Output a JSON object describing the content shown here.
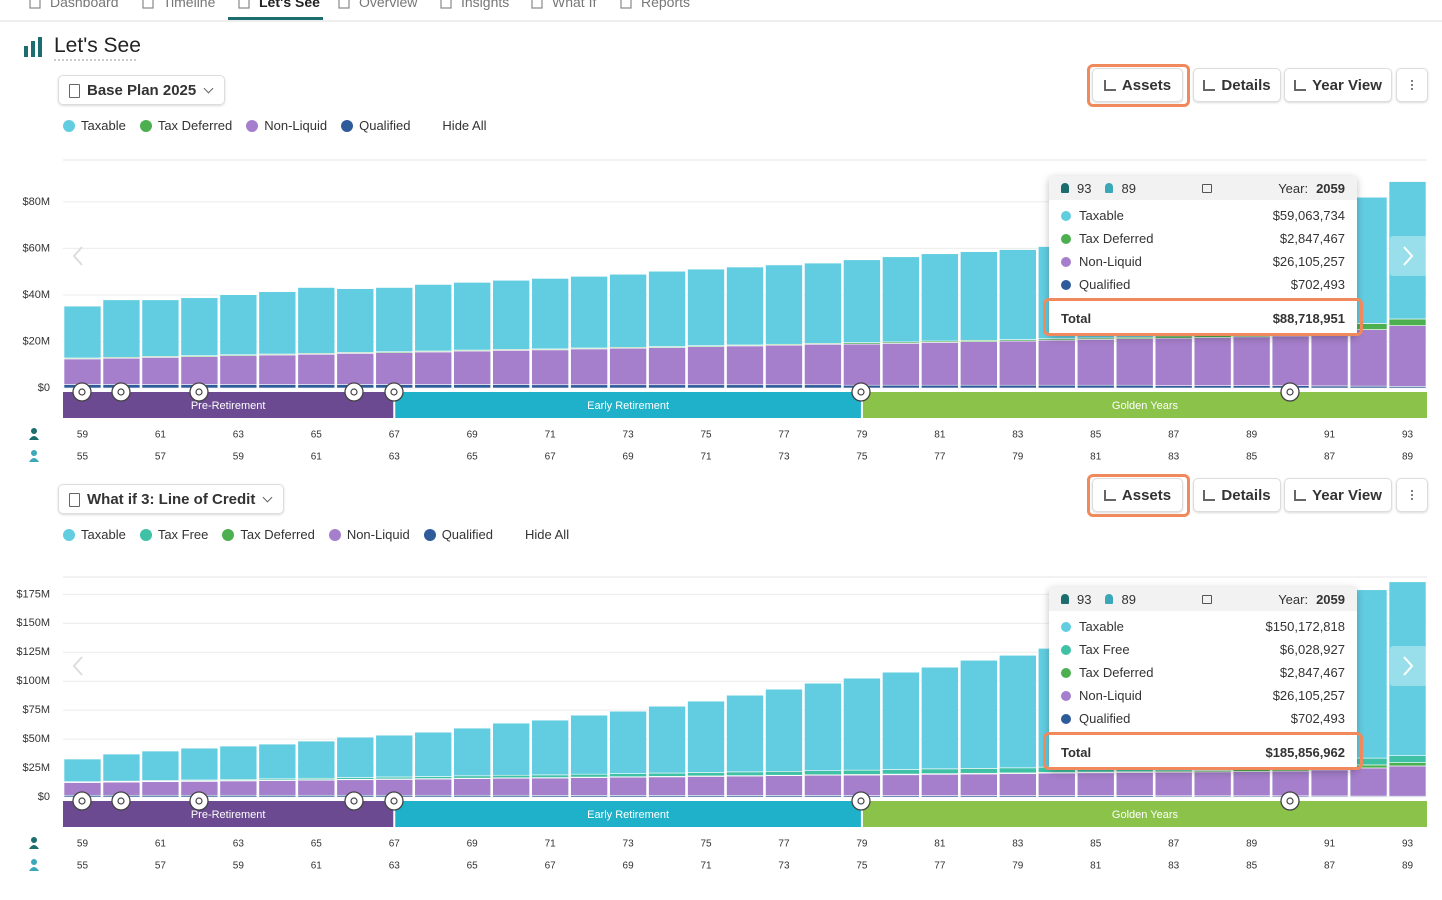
{
  "nav": [
    "Dashboard",
    "Timeline",
    "Let's See",
    "Overview",
    "Insights",
    "What If",
    "Reports"
  ],
  "page_title": "Let's See",
  "chart_data": [
    {
      "type": "bar",
      "stacked": true,
      "plan": "Base Plan 2025",
      "buttons": [
        "Assets",
        "Details",
        "Year View"
      ],
      "hide_all": "Hide All",
      "categories": [
        59,
        null,
        61,
        null,
        63,
        null,
        65,
        null,
        67,
        null,
        69,
        null,
        71,
        null,
        73,
        null,
        75,
        null,
        77,
        null,
        79,
        null,
        81,
        null,
        83,
        null,
        85,
        null,
        87,
        null,
        89,
        null,
        91,
        null,
        93
      ],
      "categories_secondary": [
        55,
        null,
        57,
        null,
        59,
        null,
        61,
        null,
        63,
        null,
        65,
        null,
        67,
        null,
        69,
        null,
        71,
        null,
        73,
        null,
        75,
        null,
        77,
        null,
        79,
        null,
        81,
        null,
        83,
        null,
        85,
        null,
        87,
        null,
        89
      ],
      "ylim": [
        0,
        98
      ],
      "yticks": [
        {
          "value": 0,
          "label": "$0"
        },
        {
          "value": 20,
          "label": "$20M"
        },
        {
          "value": 40,
          "label": "$40M"
        },
        {
          "value": 60,
          "label": "$60M"
        },
        {
          "value": 80,
          "label": "$80M"
        }
      ],
      "grid": true,
      "series": [
        {
          "name": "Taxable",
          "color": "#62cde0",
          "values": [
            22.3,
            24.7,
            24.3,
            24.9,
            25.8,
            26.8,
            28.3,
            27.4,
            27.6,
            28.6,
            29.1,
            29.7,
            30.3,
            30.8,
            31.4,
            32.4,
            32.9,
            33.5,
            34.1,
            34.5,
            35.6,
            36.6,
            37.5,
            38.1,
            38.7,
            39.6,
            40.6,
            42.1,
            42.8,
            44.0,
            45.1,
            46.1,
            50.3,
            54.3,
            59.06
          ]
        },
        {
          "name": "Tax Deferred",
          "color": "#4caf50",
          "values": [
            0.4,
            0.4,
            0.4,
            0.4,
            0.4,
            0.4,
            0.4,
            0.4,
            0.4,
            0.4,
            0.4,
            0.4,
            0.4,
            0.4,
            0.4,
            0.4,
            0.4,
            0.4,
            0.4,
            0.4,
            0.6,
            0.6,
            0.6,
            0.6,
            0.6,
            0.6,
            0.6,
            0.6,
            1.0,
            1.3,
            1.6,
            2.0,
            2.3,
            2.6,
            2.85
          ]
        },
        {
          "name": "Non-Liquid",
          "color": "#a57fcb",
          "values": [
            11.0,
            11.3,
            11.7,
            12.0,
            12.4,
            12.7,
            13.0,
            13.4,
            13.7,
            14.0,
            14.4,
            14.7,
            15.0,
            15.4,
            15.7,
            16.0,
            16.4,
            16.7,
            17.0,
            17.4,
            17.7,
            18.0,
            18.4,
            18.7,
            19.0,
            19.4,
            19.7,
            20.0,
            20.4,
            20.7,
            21.0,
            21.4,
            22.5,
            24.3,
            26.11
          ]
        },
        {
          "name": "Qualified",
          "color": "#2e5c9a",
          "values": [
            1.5,
            1.5,
            1.5,
            1.5,
            1.5,
            1.5,
            1.5,
            1.5,
            1.5,
            1.5,
            1.5,
            1.5,
            1.4,
            1.4,
            1.4,
            1.4,
            1.4,
            1.4,
            1.4,
            1.4,
            1.2,
            1.2,
            1.2,
            1.2,
            1.2,
            1.2,
            1.2,
            1.2,
            1.0,
            1.0,
            1.0,
            1.0,
            0.9,
            0.8,
            0.7
          ]
        }
      ],
      "phases": [
        {
          "label": "Pre-Retirement",
          "start": 59,
          "end": 67,
          "color": "#6b4a91"
        },
        {
          "label": "Early Retirement",
          "start": 67,
          "end": 79,
          "color": "#1fb1c9"
        },
        {
          "label": "Golden Years",
          "start": 79,
          "end": 93,
          "color": "#8bc34a"
        }
      ],
      "tooltip": {
        "ages": [
          93,
          89
        ],
        "year_label": "Year:",
        "year": 2059,
        "values": [
          "$59,063,734",
          "$2,847,467",
          "$26,105,257",
          "$702,493"
        ],
        "total_label": "Total",
        "total": "$88,718,951"
      }
    },
    {
      "type": "bar",
      "stacked": true,
      "plan": "What if 3: Line of Credit",
      "buttons": [
        "Assets",
        "Details",
        "Year View"
      ],
      "hide_all": "Hide All",
      "categories": [
        59,
        null,
        61,
        null,
        63,
        null,
        65,
        null,
        67,
        null,
        69,
        null,
        71,
        null,
        73,
        null,
        75,
        null,
        77,
        null,
        79,
        null,
        81,
        null,
        83,
        null,
        85,
        null,
        87,
        null,
        89,
        null,
        91,
        null,
        93
      ],
      "categories_secondary": [
        55,
        null,
        57,
        null,
        59,
        null,
        61,
        null,
        63,
        null,
        65,
        null,
        67,
        null,
        69,
        null,
        71,
        null,
        73,
        null,
        75,
        null,
        77,
        null,
        79,
        null,
        81,
        null,
        83,
        null,
        85,
        null,
        87,
        null,
        89
      ],
      "ylim": [
        0,
        190
      ],
      "yticks": [
        {
          "value": 0,
          "label": "$0"
        },
        {
          "value": 25,
          "label": "$25M"
        },
        {
          "value": 50,
          "label": "$50M"
        },
        {
          "value": 75,
          "label": "$75M"
        },
        {
          "value": 100,
          "label": "$100M"
        },
        {
          "value": 125,
          "label": "$125M"
        },
        {
          "value": 150,
          "label": "$150M"
        },
        {
          "value": 175,
          "label": "$175M"
        }
      ],
      "grid": true,
      "series": [
        {
          "name": "Taxable",
          "color": "#62cde0",
          "values": [
            19.6,
            23.4,
            25.5,
            27.5,
            28.7,
            30.0,
            32.1,
            34.9,
            36.1,
            38.3,
            41.2,
            45.0,
            47.3,
            51.0,
            53.9,
            57.7,
            61.6,
            66.2,
            70.9,
            75.6,
            79.4,
            84.1,
            87.8,
            93.4,
            97.2,
            102.6,
            108.3,
            115.5,
            120.8,
            126.9,
            131.0,
            136.0,
            140.6,
            145.4,
            150.17
          ]
        },
        {
          "name": "Tax Free",
          "color": "#3fc1a5",
          "values": [
            0.3,
            0.5,
            0.6,
            0.8,
            1.0,
            1.1,
            1.3,
            1.5,
            1.7,
            1.8,
            2.0,
            2.2,
            2.3,
            2.5,
            2.7,
            2.9,
            3.0,
            3.2,
            3.4,
            3.5,
            3.7,
            3.9,
            4.1,
            4.2,
            4.4,
            4.6,
            4.7,
            4.9,
            5.1,
            5.3,
            5.4,
            5.6,
            5.7,
            5.9,
            6.03
          ]
        },
        {
          "name": "Tax Deferred",
          "color": "#4caf50",
          "values": [
            0.4,
            0.4,
            0.4,
            0.4,
            0.4,
            0.4,
            0.4,
            0.4,
            0.4,
            0.4,
            0.4,
            0.4,
            0.4,
            0.4,
            0.4,
            0.4,
            0.4,
            0.4,
            0.4,
            0.4,
            0.6,
            0.6,
            0.6,
            0.6,
            0.6,
            0.6,
            0.6,
            0.6,
            1.0,
            1.3,
            1.6,
            2.0,
            2.3,
            2.6,
            2.85
          ]
        },
        {
          "name": "Non-Liquid",
          "color": "#a57fcb",
          "values": [
            11.0,
            11.3,
            11.7,
            12.0,
            12.4,
            12.7,
            13.0,
            13.4,
            13.7,
            14.0,
            14.4,
            14.7,
            15.0,
            15.4,
            15.7,
            16.0,
            16.4,
            16.7,
            17.0,
            17.4,
            17.7,
            18.0,
            18.4,
            18.7,
            19.0,
            19.4,
            19.7,
            20.0,
            20.4,
            20.7,
            21.0,
            21.4,
            22.5,
            24.3,
            26.11
          ]
        },
        {
          "name": "Qualified",
          "color": "#2e5c9a",
          "values": [
            1.5,
            1.5,
            1.5,
            1.5,
            1.5,
            1.5,
            1.5,
            1.5,
            1.5,
            1.5,
            1.5,
            1.5,
            1.4,
            1.4,
            1.4,
            1.4,
            1.4,
            1.4,
            1.4,
            1.4,
            1.2,
            1.2,
            1.2,
            1.2,
            1.2,
            1.2,
            1.2,
            1.2,
            1.0,
            1.0,
            1.0,
            1.0,
            0.9,
            0.8,
            0.7
          ]
        }
      ],
      "phases": [
        {
          "label": "Pre-Retirement",
          "start": 59,
          "end": 67,
          "color": "#6b4a91"
        },
        {
          "label": "Early Retirement",
          "start": 67,
          "end": 79,
          "color": "#1fb1c9"
        },
        {
          "label": "Golden Years",
          "start": 79,
          "end": 93,
          "color": "#8bc34a"
        }
      ],
      "tooltip": {
        "ages": [
          93,
          89
        ],
        "year_label": "Year:",
        "year": 2059,
        "values": [
          "$150,172,818",
          "$6,028,927",
          "$2,847,467",
          "$26,105,257",
          "$702,493"
        ],
        "total_label": "Total",
        "total": "$185,856,962"
      }
    }
  ]
}
